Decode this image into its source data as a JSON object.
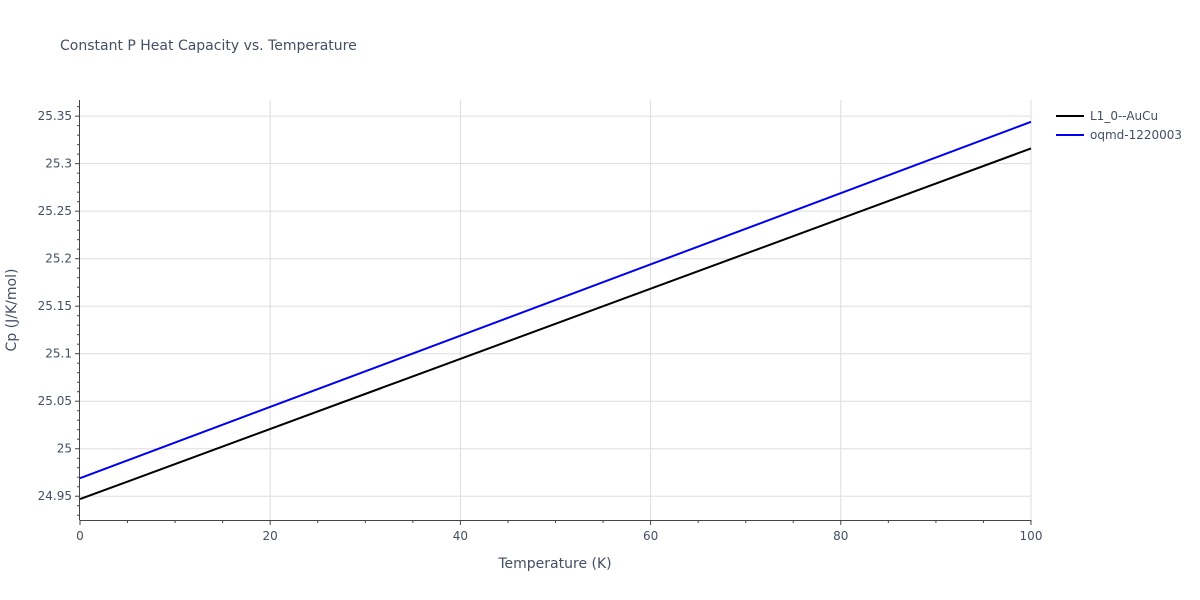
{
  "chart_data": {
    "type": "line",
    "title": "Constant P Heat Capacity vs. Temperature",
    "xlabel": "Temperature (K)",
    "ylabel": "Cp (J/K/mol)",
    "xlim": [
      0,
      100
    ],
    "ylim": [
      24.925,
      25.367
    ],
    "x_ticks": [
      0,
      20,
      40,
      60,
      80,
      100
    ],
    "x_tick_labels": [
      "0",
      "20",
      "40",
      "60",
      "80",
      "100"
    ],
    "y_ticks": [
      24.95,
      25,
      25.05,
      25.1,
      25.15,
      25.2,
      25.25,
      25.3,
      25.35
    ],
    "y_tick_labels": [
      "24.95",
      "25",
      "25.05",
      "25.1",
      "25.15",
      "25.2",
      "25.25",
      "25.3",
      "25.35"
    ],
    "grid": true,
    "legend_position": "top-right",
    "series": [
      {
        "name": "L1_0--AuCu",
        "color": "#000000",
        "x": [
          0,
          100
        ],
        "y": [
          24.947,
          25.316
        ]
      },
      {
        "name": "oqmd-1220003",
        "color": "#0000ee",
        "x": [
          0,
          100
        ],
        "y": [
          24.969,
          25.344
        ]
      }
    ]
  }
}
